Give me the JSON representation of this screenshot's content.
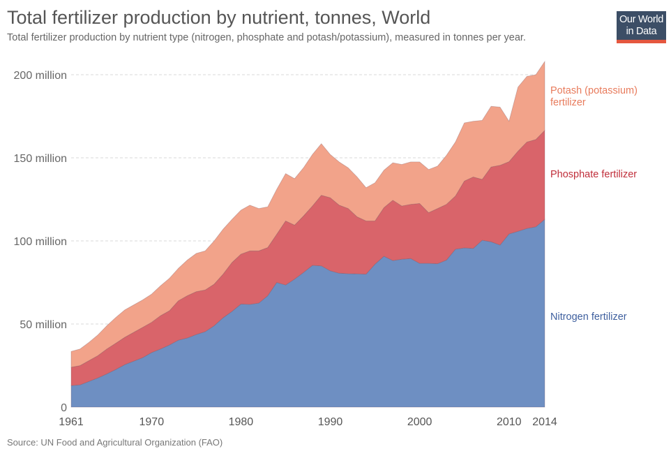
{
  "header": {
    "title": "Total fertilizer production by nutrient, tonnes, World",
    "subtitle": "Total fertilizer production by nutrient type (nitrogen, phosphate and potash/potassium), measured in tonnes per year.",
    "logo_line1": "Our World",
    "logo_line2": "in Data"
  },
  "footer": {
    "source": "Source: UN Food and Agricultural Organization (FAO)"
  },
  "chart_data": {
    "type": "area",
    "stacked": true,
    "title": "Total fertilizer production by nutrient, tonnes, World",
    "xlabel": "",
    "ylabel": "",
    "unit": "tonnes",
    "x": [
      1961,
      1962,
      1963,
      1964,
      1965,
      1966,
      1967,
      1968,
      1969,
      1970,
      1971,
      1972,
      1973,
      1974,
      1975,
      1976,
      1977,
      1978,
      1979,
      1980,
      1981,
      1982,
      1983,
      1984,
      1985,
      1986,
      1987,
      1988,
      1989,
      1990,
      1991,
      1992,
      1993,
      1994,
      1995,
      1996,
      1997,
      1998,
      1999,
      2000,
      2001,
      2002,
      2003,
      2004,
      2005,
      2006,
      2007,
      2008,
      2009,
      2010,
      2011,
      2012,
      2013,
      2014
    ],
    "ylim": [
      0,
      210000000
    ],
    "yticks": [
      0,
      50000000,
      100000000,
      150000000,
      200000000
    ],
    "ytick_labels": [
      "0",
      "50 million",
      "100 million",
      "150 million",
      "200 million"
    ],
    "xticks": [
      1961,
      1970,
      1980,
      1990,
      2000,
      2010,
      2014
    ],
    "xtick_labels": [
      "1961",
      "1970",
      "1980",
      "1990",
      "2000",
      "2010",
      "2014"
    ],
    "grid": "horizontal-dashed",
    "legend": "right-inline",
    "series": [
      {
        "name": "Nitrogen fertilizer",
        "color": "#6e8fc2",
        "label_color": "#3e5f9e",
        "values": [
          13000000,
          13400000,
          15500000,
          17600000,
          20000000,
          22700000,
          25600000,
          27700000,
          29800000,
          32800000,
          35000000,
          37400000,
          40300000,
          41600000,
          43700000,
          45400000,
          49000000,
          53800000,
          57600000,
          62000000,
          61800000,
          62600000,
          67000000,
          75000000,
          73500000,
          77000000,
          81000000,
          85300000,
          85000000,
          82000000,
          80600000,
          80300000,
          80200000,
          80000000,
          86000000,
          90800000,
          88200000,
          89000000,
          89400000,
          86500000,
          86500000,
          86300000,
          88500000,
          95000000,
          95800000,
          95500000,
          100400000,
          99500000,
          97500000,
          104200000,
          105800000,
          107500000,
          108500000,
          113000000
        ]
      },
      {
        "name": "Phosphate fertilizer",
        "color": "#d9646a",
        "label_color": "#c02e3a",
        "values": [
          11000000,
          11600000,
          12500000,
          13400000,
          15000000,
          15800000,
          16400000,
          17300000,
          18200000,
          18200000,
          20000000,
          20600000,
          23700000,
          25400000,
          25800000,
          25100000,
          25000000,
          26200000,
          29400000,
          30000000,
          32200000,
          31400000,
          29000000,
          29000000,
          38500000,
          32500000,
          34000000,
          35700000,
          42500000,
          44000000,
          40900000,
          39200000,
          34300000,
          32000000,
          26000000,
          29200000,
          36300000,
          32000000,
          32600000,
          36000000,
          30500000,
          33200000,
          33500000,
          32000000,
          40200000,
          43000000,
          36600000,
          45000000,
          48000000,
          43500000,
          48200000,
          52000000,
          52500000,
          53500000
        ]
      },
      {
        "name": "Potash (potassium) fertilizer",
        "color": "#f2a38a",
        "label_color": "#e87b5c",
        "values": [
          9500000,
          10000000,
          11000000,
          12500000,
          14000000,
          15500000,
          16500000,
          16500000,
          16500000,
          17000000,
          18000000,
          19500000,
          19500000,
          21500000,
          23000000,
          23500000,
          26000000,
          27000000,
          26000000,
          26500000,
          27500000,
          25500000,
          24500000,
          27000000,
          28500000,
          28000000,
          29000000,
          31000000,
          31000000,
          26000000,
          26000000,
          24500000,
          24000000,
          20000000,
          23000000,
          22500000,
          22500000,
          25000000,
          25500000,
          25000000,
          26000000,
          25500000,
          29500000,
          32500000,
          35000000,
          33500000,
          35500000,
          36500000,
          35000000,
          24300000,
          38500000,
          39500000,
          39000000,
          41500000
        ]
      }
    ]
  }
}
